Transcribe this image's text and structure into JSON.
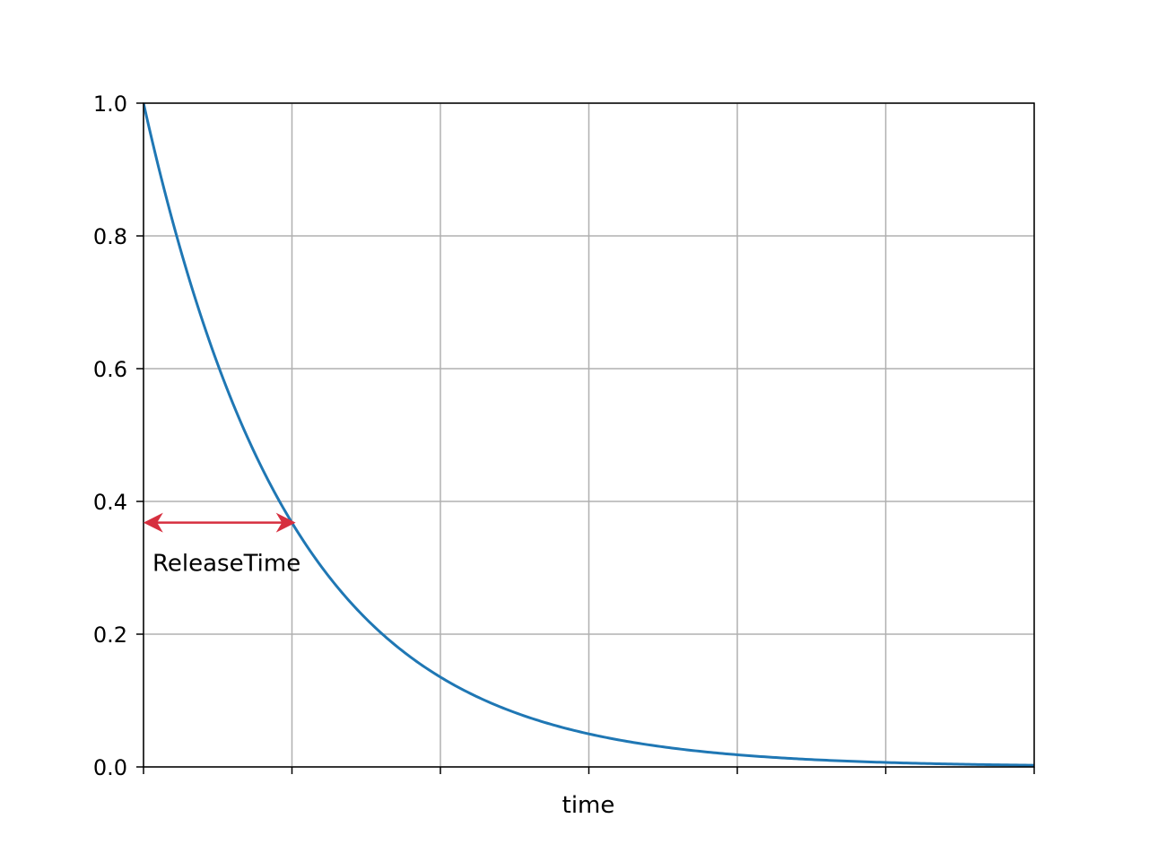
{
  "chart_data": {
    "type": "line",
    "xlabel": "time",
    "ylabel": "",
    "title": "",
    "xlim": [
      0,
      6
    ],
    "ylim": [
      0,
      1
    ],
    "x_ticks": [
      0,
      1,
      2,
      3,
      4,
      5,
      6
    ],
    "x_tick_labels_shown": false,
    "y_ticks": [
      0.0,
      0.2,
      0.4,
      0.6,
      0.8,
      1.0
    ],
    "y_tick_labels": [
      "0.0",
      "0.2",
      "0.4",
      "0.6",
      "0.8",
      "1.0"
    ],
    "grid": true,
    "series": [
      {
        "color": "#1f77b4",
        "function": "exp(-x)",
        "x": [
          0,
          0.25,
          0.5,
          0.75,
          1,
          1.25,
          1.5,
          1.75,
          2,
          2.5,
          3,
          3.5,
          4,
          4.5,
          5,
          5.5,
          6
        ],
        "y": [
          1.0,
          0.779,
          0.607,
          0.472,
          0.368,
          0.287,
          0.223,
          0.174,
          0.135,
          0.082,
          0.05,
          0.03,
          0.018,
          0.011,
          0.007,
          0.004,
          0.002
        ]
      }
    ],
    "annotations": [
      {
        "text": "ReleaseTime",
        "type": "double-arrow",
        "x_start": 0,
        "x_end": 1,
        "y": 0.368,
        "color": "#d62f3f"
      }
    ]
  }
}
